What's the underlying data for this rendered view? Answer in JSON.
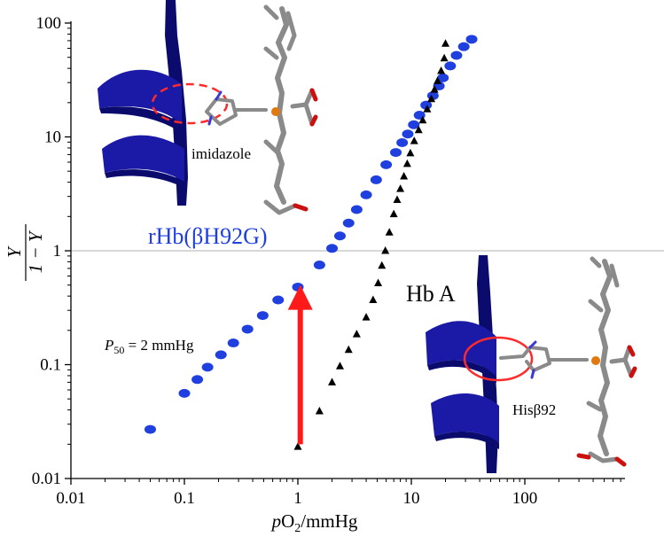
{
  "chart_data": {
    "type": "scatter",
    "xscale": "log",
    "yscale": "log",
    "xlim": [
      0.01,
      700
    ],
    "ylim": [
      0.01,
      100
    ],
    "x_ticks": [
      "0.01",
      "0.1",
      "1",
      "10",
      "100"
    ],
    "y_ticks": [
      "0.01",
      "0.1",
      "1",
      "10",
      "100"
    ],
    "x_tick_values": [
      0.01,
      0.1,
      1,
      10,
      100
    ],
    "y_tick_values": [
      0.01,
      0.1,
      1,
      10,
      100
    ],
    "xlabel": {
      "italic": "p",
      "main": "O",
      "sub": "2",
      "rest": "/mmHg"
    },
    "ylabel": {
      "numerator": "Y",
      "denominator": "1 − Y"
    },
    "reference_line_y": 1,
    "series": [
      {
        "name": "rHb(βH92G)",
        "color": "#1f3fdf",
        "marker": "circle",
        "points": [
          [
            0.05,
            0.027
          ],
          [
            0.1,
            0.056
          ],
          [
            0.13,
            0.074
          ],
          [
            0.16,
            0.095
          ],
          [
            0.21,
            0.122
          ],
          [
            0.27,
            0.155
          ],
          [
            0.36,
            0.205
          ],
          [
            0.49,
            0.27
          ],
          [
            0.67,
            0.37
          ],
          [
            1.0,
            0.48
          ],
          [
            1.55,
            0.75
          ],
          [
            2.0,
            1.05
          ],
          [
            2.35,
            1.35
          ],
          [
            2.8,
            1.75
          ],
          [
            3.3,
            2.3
          ],
          [
            4.0,
            3.1
          ],
          [
            4.9,
            4.2
          ],
          [
            6.0,
            5.7
          ],
          [
            7.3,
            7.3
          ],
          [
            8.3,
            8.9
          ],
          [
            9.3,
            10.6
          ],
          [
            10.5,
            12.8
          ],
          [
            11.8,
            15.5
          ],
          [
            13.5,
            19.0
          ],
          [
            15.5,
            23.0
          ],
          [
            17.5,
            28.0
          ],
          [
            19.0,
            33.0
          ],
          [
            22.0,
            42.0
          ],
          [
            25.0,
            52.0
          ],
          [
            29.0,
            62.0
          ],
          [
            34.0,
            72.0
          ]
        ]
      },
      {
        "name": "Hb A",
        "color": "#000000",
        "marker": "triangle",
        "points": [
          [
            1.0,
            0.019
          ],
          [
            1.55,
            0.039
          ],
          [
            2.0,
            0.07
          ],
          [
            2.35,
            0.097
          ],
          [
            2.8,
            0.135
          ],
          [
            3.3,
            0.185
          ],
          [
            4.0,
            0.26
          ],
          [
            4.6,
            0.37
          ],
          [
            5.1,
            0.52
          ],
          [
            5.5,
            0.74
          ],
          [
            5.9,
            1.0
          ],
          [
            6.4,
            1.45
          ],
          [
            7.0,
            2.1
          ],
          [
            7.5,
            2.8
          ],
          [
            8.0,
            3.5
          ],
          [
            8.6,
            4.5
          ],
          [
            9.2,
            5.8
          ],
          [
            9.8,
            7.2
          ],
          [
            10.6,
            9.2
          ],
          [
            11.6,
            11.5
          ],
          [
            12.6,
            14.0
          ],
          [
            13.8,
            17.5
          ],
          [
            15.0,
            21.5
          ],
          [
            16.0,
            26.0
          ],
          [
            17.0,
            31.0
          ],
          [
            18.3,
            38.0
          ],
          [
            19.5,
            49.0
          ],
          [
            20.0,
            66.0
          ]
        ]
      }
    ],
    "arrow": {
      "from": [
        1.05,
        0.02
      ],
      "to": [
        1.05,
        0.5
      ],
      "color": "#ff1a1a"
    }
  },
  "labels": {
    "mutant_name": "rHb(βH92G)",
    "wildtype_name": "Hb A",
    "imidazole": "imidazole",
    "his_label": "Hisβ92",
    "p50_var": "P",
    "p50_sub": "50",
    "p50_rest": " = 2 mmHg"
  },
  "colors": {
    "helix": "#1a1aa6",
    "helix_dark": "#0b0b6e",
    "heme": "#8a8a8a",
    "iron": "#e07a10",
    "oxygen": "#cc1010",
    "nitrogen": "#3a3ad0",
    "highlight": "#ff2a2a"
  }
}
